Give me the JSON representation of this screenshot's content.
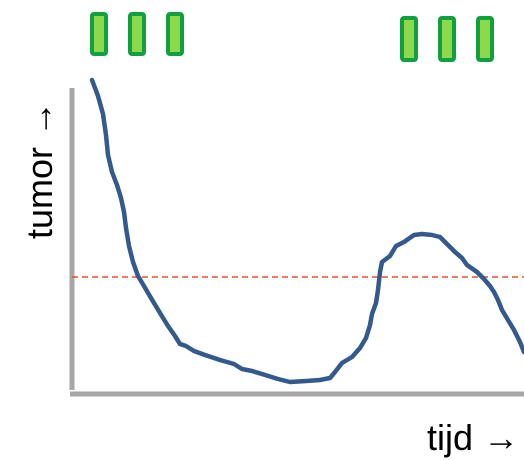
{
  "diagram": {
    "y_axis_label": "tumor →",
    "x_axis_label": "tijd →",
    "colors": {
      "axis": "#A6A6A6",
      "curve": "#34598C",
      "threshold": "#E8502A",
      "dose_fill": "#8ED84C",
      "dose_stroke": "#0FA040"
    },
    "dose_groups": [
      {
        "doses": 3
      },
      {
        "doses": 3
      }
    ],
    "curve": {
      "shape": "rapid decline, trough, then regrowth peak and decline",
      "line_style": "solid"
    },
    "threshold_line": {
      "style": "dashed"
    }
  }
}
